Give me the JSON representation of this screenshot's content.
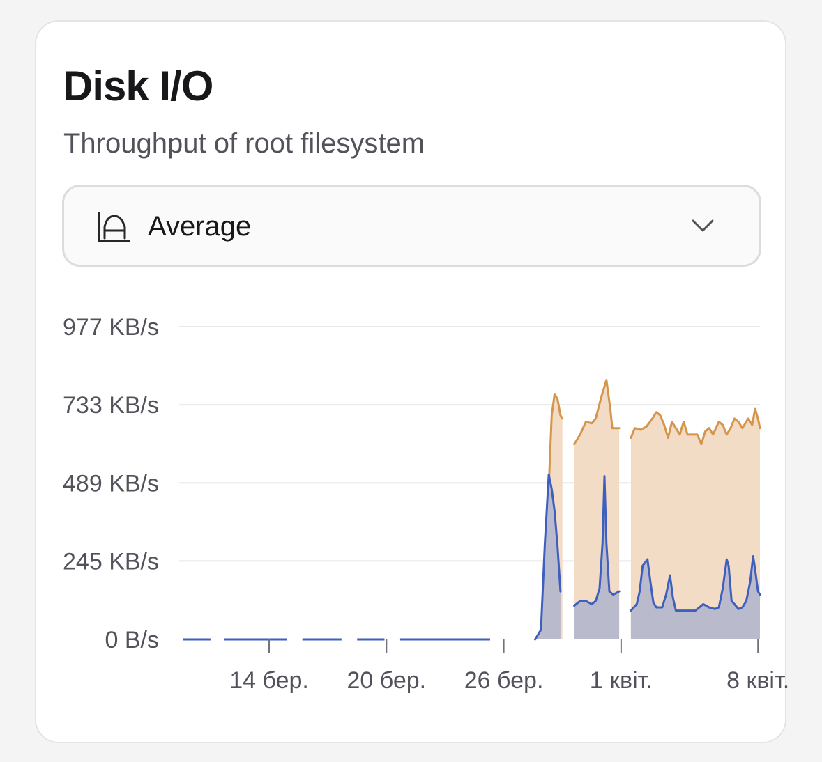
{
  "card": {
    "title": "Disk I/O",
    "subtitle": "Throughput of root filesystem"
  },
  "select": {
    "value": "Average",
    "icon": "chart-area-icon"
  },
  "chart_data": {
    "type": "area",
    "title": "",
    "xlabel": "",
    "ylabel": "",
    "y_ticks": [
      "977 KB/s",
      "733 KB/s",
      "489 KB/s",
      "245 KB/s",
      "0 B/s"
    ],
    "y_tick_values": [
      977,
      733,
      489,
      245,
      0
    ],
    "ylim": [
      0,
      977
    ],
    "y_unit": "KB/s",
    "x_ticks": [
      "14 бер.",
      "20 бер.",
      "26 бер.",
      "1 квіт.",
      "8 квіт."
    ],
    "x_tick_values": [
      14,
      20,
      26,
      32,
      39
    ],
    "xlim": [
      9.4,
      39.1
    ],
    "x_unit": "days, 1 = 1 March",
    "grid": true,
    "legend": "none",
    "colors": {
      "read": "#d4954d",
      "read_fill": "#f3dcc6",
      "write": "#3f5fbf",
      "write_fill": "#b9bacb",
      "grid": "#e8e8ea"
    },
    "baseline_segments": [
      [
        9.6,
        11.0
      ],
      [
        11.7,
        14.9
      ],
      [
        15.7,
        17.7
      ],
      [
        18.5,
        19.9
      ],
      [
        20.7,
        25.3
      ]
    ],
    "series": [
      {
        "key": "read",
        "segments": [
          [
            [
              28.1,
              0
            ],
            [
              28.3,
              476
            ],
            [
              28.45,
              700
            ],
            [
              28.6,
              767
            ],
            [
              28.75,
              750
            ],
            [
              28.9,
              700
            ],
            [
              29.0,
              690
            ],
            [
              29.0,
              0
            ]
          ],
          [
            [
              29.6,
              0
            ],
            [
              29.6,
              610
            ],
            [
              29.9,
              640
            ],
            [
              30.2,
              680
            ],
            [
              30.5,
              675
            ],
            [
              30.7,
              690
            ],
            [
              31.0,
              760
            ],
            [
              31.25,
              810
            ],
            [
              31.45,
              720
            ],
            [
              31.55,
              660
            ],
            [
              31.9,
              660
            ],
            [
              31.9,
              0
            ]
          ],
          [
            [
              32.5,
              0
            ],
            [
              32.5,
              630
            ],
            [
              32.7,
              660
            ],
            [
              33.0,
              655
            ],
            [
              33.3,
              665
            ],
            [
              33.6,
              690
            ],
            [
              33.8,
              710
            ],
            [
              34.0,
              700
            ],
            [
              34.2,
              670
            ],
            [
              34.4,
              630
            ],
            [
              34.6,
              680
            ],
            [
              34.8,
              660
            ],
            [
              35.0,
              640
            ],
            [
              35.2,
              680
            ],
            [
              35.4,
              640
            ],
            [
              35.6,
              640
            ],
            [
              35.9,
              640
            ],
            [
              36.1,
              610
            ],
            [
              36.3,
              650
            ],
            [
              36.5,
              660
            ],
            [
              36.7,
              640
            ],
            [
              37.0,
              680
            ],
            [
              37.2,
              670
            ],
            [
              37.4,
              640
            ],
            [
              37.6,
              660
            ],
            [
              37.8,
              690
            ],
            [
              38.0,
              680
            ],
            [
              38.2,
              660
            ],
            [
              38.5,
              690
            ],
            [
              38.7,
              670
            ],
            [
              38.85,
              720
            ],
            [
              39.0,
              690
            ],
            [
              39.1,
              660
            ],
            [
              39.1,
              0
            ]
          ]
        ]
      },
      {
        "key": "write",
        "segments": [
          [
            [
              27.2,
              0
            ],
            [
              27.6,
              0
            ],
            [
              27.9,
              30
            ],
            [
              28.1,
              300
            ],
            [
              28.3,
              515
            ],
            [
              28.45,
              470
            ],
            [
              28.6,
              400
            ],
            [
              28.75,
              290
            ],
            [
              28.9,
              150
            ],
            [
              28.9,
              0
            ]
          ],
          [
            [
              29.6,
              0
            ],
            [
              29.6,
              105
            ],
            [
              29.9,
              120
            ],
            [
              30.2,
              120
            ],
            [
              30.5,
              110
            ],
            [
              30.7,
              120
            ],
            [
              30.9,
              160
            ],
            [
              31.05,
              300
            ],
            [
              31.15,
              510
            ],
            [
              31.25,
              300
            ],
            [
              31.4,
              150
            ],
            [
              31.6,
              140
            ],
            [
              31.9,
              150
            ],
            [
              31.9,
              0
            ]
          ],
          [
            [
              32.5,
              0
            ],
            [
              32.5,
              90
            ],
            [
              32.8,
              110
            ],
            [
              32.95,
              150
            ],
            [
              33.1,
              230
            ],
            [
              33.35,
              250
            ],
            [
              33.5,
              180
            ],
            [
              33.65,
              115
            ],
            [
              33.8,
              100
            ],
            [
              34.1,
              100
            ],
            [
              34.3,
              140
            ],
            [
              34.5,
              200
            ],
            [
              34.65,
              130
            ],
            [
              34.8,
              90
            ],
            [
              35.1,
              90
            ],
            [
              35.5,
              90
            ],
            [
              35.8,
              90
            ],
            [
              36.0,
              100
            ],
            [
              36.2,
              110
            ],
            [
              36.5,
              100
            ],
            [
              36.8,
              95
            ],
            [
              37.0,
              100
            ],
            [
              37.2,
              160
            ],
            [
              37.4,
              250
            ],
            [
              37.5,
              230
            ],
            [
              37.65,
              120
            ],
            [
              37.8,
              110
            ],
            [
              38.0,
              95
            ],
            [
              38.2,
              100
            ],
            [
              38.4,
              120
            ],
            [
              38.6,
              180
            ],
            [
              38.75,
              260
            ],
            [
              38.85,
              220
            ],
            [
              39.0,
              150
            ],
            [
              39.1,
              140
            ],
            [
              39.1,
              0
            ]
          ]
        ]
      }
    ]
  }
}
